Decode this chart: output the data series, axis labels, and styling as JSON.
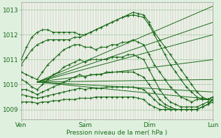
{
  "xlabel": "Pression niveau de la mer( hPa )",
  "background_color": "#dff0df",
  "plot_bg_color": "#e8f4e8",
  "line_color": "#1a6b1a",
  "ylim": [
    1008.6,
    1013.3
  ],
  "xlim": [
    0,
    144
  ],
  "xtick_labels": [
    "Ven",
    "Sam",
    "Dim",
    "Lun"
  ],
  "xtick_pos": [
    0,
    48,
    96,
    144
  ],
  "ytick_labels": [
    "1009",
    "1010",
    "1011",
    "1012",
    "1013"
  ],
  "ytick_vals": [
    1009,
    1010,
    1011,
    1012,
    1013
  ],
  "fan_lines": [
    {
      "x": [
        12,
        144
      ],
      "y": [
        1010.1,
        1013.15
      ]
    },
    {
      "x": [
        12,
        144
      ],
      "y": [
        1010.1,
        1012.5
      ]
    },
    {
      "x": [
        12,
        144
      ],
      "y": [
        1010.1,
        1012.0
      ]
    },
    {
      "x": [
        12,
        144
      ],
      "y": [
        1010.1,
        1011.0
      ]
    },
    {
      "x": [
        12,
        144
      ],
      "y": [
        1010.1,
        1010.2
      ]
    },
    {
      "x": [
        12,
        144
      ],
      "y": [
        1010.1,
        1009.7
      ]
    },
    {
      "x": [
        12,
        144
      ],
      "y": [
        1010.1,
        1009.4
      ]
    }
  ],
  "detailed_series": [
    {
      "x": [
        0,
        4,
        8,
        12,
        16,
        20,
        24,
        28,
        32,
        36,
        40,
        44,
        48,
        52,
        56,
        60,
        64,
        68,
        72,
        76,
        80,
        84,
        88,
        92,
        96,
        100,
        104,
        108,
        112,
        116,
        120,
        124,
        128,
        132,
        136,
        140,
        144
      ],
      "y": [
        1011.0,
        1011.5,
        1011.9,
        1012.1,
        1012.2,
        1012.2,
        1012.1,
        1012.1,
        1012.1,
        1012.1,
        1012.1,
        1012.0,
        1012.0,
        1012.1,
        1012.2,
        1012.3,
        1012.4,
        1012.5,
        1012.6,
        1012.7,
        1012.8,
        1012.9,
        1012.85,
        1012.8,
        1012.5,
        1012.1,
        1011.8,
        1011.5,
        1011.2,
        1010.9,
        1010.6,
        1010.3,
        1010.0,
        1009.7,
        1009.5,
        1009.4,
        1009.5
      ]
    },
    {
      "x": [
        0,
        4,
        8,
        12,
        16,
        20,
        24,
        28,
        32,
        36,
        40,
        44,
        48,
        52,
        56,
        60,
        64,
        68,
        72,
        76,
        80,
        84,
        88,
        92,
        96,
        100,
        104,
        108,
        112,
        116,
        120,
        124,
        128,
        132,
        136,
        140,
        144
      ],
      "y": [
        1010.8,
        1011.1,
        1011.4,
        1011.6,
        1011.7,
        1011.8,
        1011.8,
        1011.8,
        1011.8,
        1011.8,
        1011.9,
        1011.9,
        1012.0,
        1012.1,
        1012.2,
        1012.3,
        1012.4,
        1012.5,
        1012.6,
        1012.7,
        1012.75,
        1012.8,
        1012.75,
        1012.7,
        1012.4,
        1012.0,
        1011.6,
        1011.2,
        1010.8,
        1010.5,
        1010.2,
        1009.9,
        1009.7,
        1009.5,
        1009.4,
        1009.4,
        1009.5
      ]
    },
    {
      "x": [
        0,
        4,
        8,
        12,
        16,
        20,
        24,
        28,
        32,
        36,
        40,
        44,
        48,
        52,
        56,
        60,
        64,
        68,
        72,
        76,
        80,
        84,
        88,
        92,
        96,
        100,
        104,
        108,
        112,
        116,
        120,
        124,
        128,
        132,
        136,
        140,
        144
      ],
      "y": [
        1010.5,
        1010.4,
        1010.3,
        1010.2,
        1010.5,
        1010.8,
        1011.0,
        1011.2,
        1011.4,
        1011.5,
        1011.6,
        1011.6,
        1011.5,
        1011.5,
        1011.4,
        1011.5,
        1011.5,
        1011.6,
        1011.6,
        1011.7,
        1011.7,
        1011.8,
        1011.7,
        1011.6,
        1011.2,
        1010.8,
        1010.5,
        1010.2,
        1009.9,
        1009.7,
        1009.5,
        1009.4,
        1009.3,
        1009.4,
        1009.4,
        1009.4,
        1009.5
      ]
    },
    {
      "x": [
        0,
        4,
        8,
        12,
        16,
        20,
        24,
        28,
        32,
        36,
        40,
        44,
        48,
        52,
        56,
        60,
        64,
        68,
        72,
        76,
        80,
        84,
        88,
        92,
        96,
        100,
        104,
        108,
        112,
        116,
        120,
        124,
        128,
        132,
        136,
        140,
        144
      ],
      "y": [
        1010.2,
        1010.1,
        1009.9,
        1009.8,
        1010.0,
        1010.2,
        1010.4,
        1010.5,
        1010.7,
        1010.8,
        1010.9,
        1011.0,
        1010.9,
        1011.0,
        1011.0,
        1011.0,
        1011.0,
        1011.1,
        1011.1,
        1011.1,
        1011.2,
        1011.2,
        1011.1,
        1011.0,
        1010.6,
        1010.2,
        1009.8,
        1009.5,
        1009.3,
        1009.2,
        1009.1,
        1009.1,
        1009.1,
        1009.1,
        1009.2,
        1009.3,
        1009.4
      ]
    },
    {
      "x": [
        0,
        4,
        8,
        12,
        16,
        20,
        24,
        28,
        32,
        36,
        40,
        44,
        48,
        52,
        56,
        60,
        64,
        68,
        72,
        76,
        80,
        84,
        88,
        92,
        96,
        100,
        104,
        108,
        112,
        116,
        120,
        124,
        128,
        132,
        136,
        140,
        144
      ],
      "y": [
        1009.8,
        1009.8,
        1009.7,
        1009.6,
        1009.7,
        1009.8,
        1009.9,
        1010.0,
        1010.1,
        1010.2,
        1010.3,
        1010.4,
        1010.3,
        1010.4,
        1010.4,
        1010.4,
        1010.5,
        1010.5,
        1010.5,
        1010.5,
        1010.5,
        1010.5,
        1010.4,
        1010.3,
        1010.0,
        1009.7,
        1009.4,
        1009.2,
        1009.1,
        1009.0,
        1009.0,
        1009.0,
        1009.0,
        1009.0,
        1009.1,
        1009.2,
        1009.4
      ]
    },
    {
      "x": [
        0,
        4,
        8,
        12,
        16,
        20,
        24,
        28,
        32,
        36,
        40,
        44,
        48,
        52,
        56,
        60,
        64,
        68,
        72,
        76,
        80,
        84,
        88,
        92,
        96,
        100,
        104,
        108,
        112,
        116,
        120,
        124,
        128,
        132,
        136,
        140,
        144
      ],
      "y": [
        1009.6,
        1009.55,
        1009.5,
        1009.45,
        1009.5,
        1009.55,
        1009.6,
        1009.65,
        1009.7,
        1009.75,
        1009.8,
        1009.85,
        1009.8,
        1009.85,
        1009.85,
        1009.85,
        1009.9,
        1009.9,
        1009.9,
        1009.9,
        1009.9,
        1009.9,
        1009.85,
        1009.8,
        1009.6,
        1009.4,
        1009.2,
        1009.1,
        1009.0,
        1009.0,
        1009.0,
        1009.0,
        1009.0,
        1009.0,
        1009.1,
        1009.2,
        1009.3
      ]
    },
    {
      "x": [
        0,
        4,
        8,
        12,
        16,
        20,
        24,
        28,
        32,
        36,
        40,
        44,
        48,
        52,
        56,
        60,
        64,
        68,
        72,
        76,
        80,
        84,
        88,
        92,
        96,
        100,
        104,
        108,
        112,
        116,
        120,
        124,
        128,
        132,
        136,
        140,
        144
      ],
      "y": [
        1009.3,
        1009.3,
        1009.3,
        1009.25,
        1009.3,
        1009.3,
        1009.35,
        1009.35,
        1009.4,
        1009.4,
        1009.4,
        1009.45,
        1009.45,
        1009.45,
        1009.5,
        1009.5,
        1009.5,
        1009.5,
        1009.5,
        1009.5,
        1009.5,
        1009.5,
        1009.45,
        1009.4,
        1009.2,
        1009.1,
        1009.0,
        1009.0,
        1009.0,
        1009.0,
        1009.0,
        1009.0,
        1009.0,
        1009.0,
        1009.1,
        1009.2,
        1009.4
      ]
    }
  ]
}
